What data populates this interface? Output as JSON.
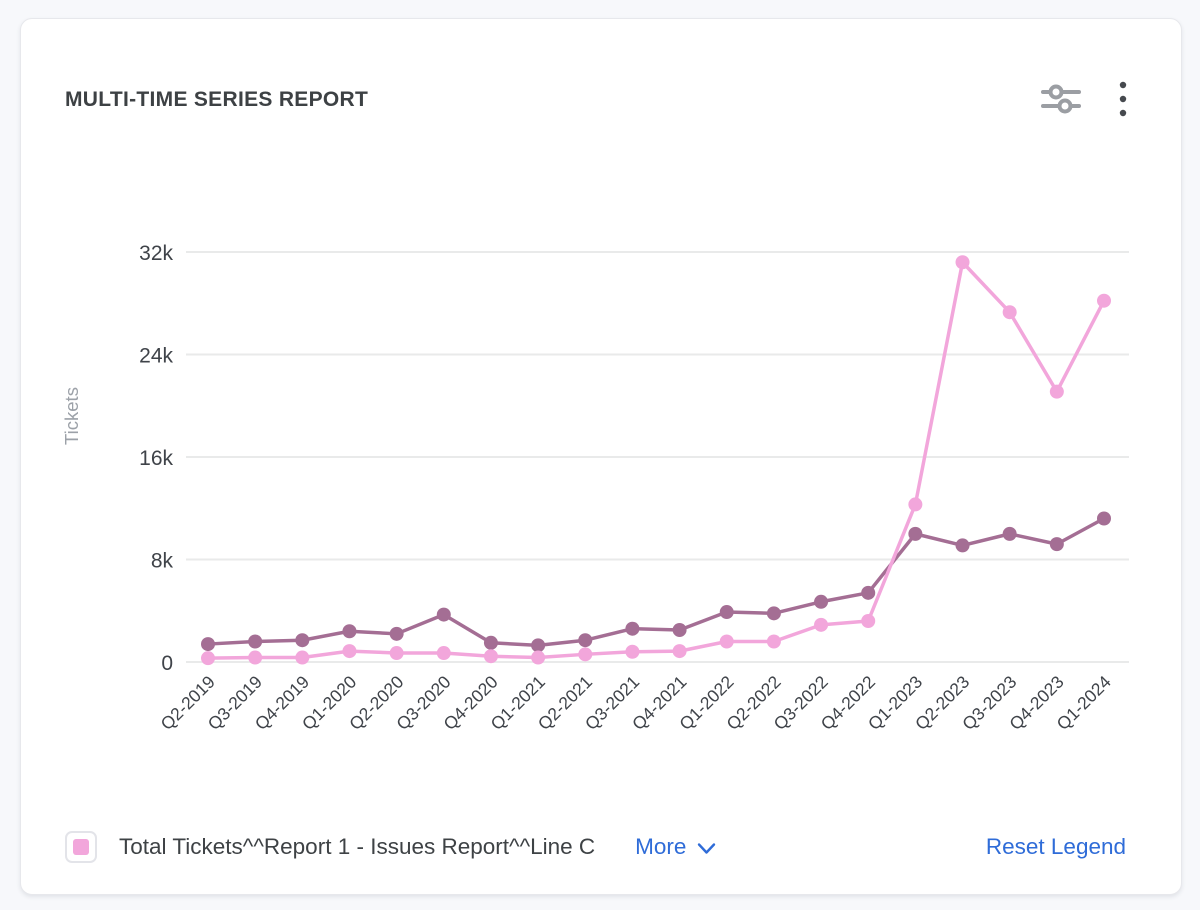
{
  "header": {
    "title": "MULTI-TIME SERIES REPORT"
  },
  "chart_data": {
    "type": "line",
    "title": "MULTI-TIME SERIES REPORT",
    "xlabel": "",
    "ylabel": "Tickets",
    "ylim": [
      0,
      32000
    ],
    "grid": true,
    "legend_position": "bottom",
    "categories": [
      "Q2-2019",
      "Q3-2019",
      "Q4-2019",
      "Q1-2020",
      "Q2-2020",
      "Q3-2020",
      "Q4-2020",
      "Q1-2021",
      "Q2-2021",
      "Q3-2021",
      "Q4-2021",
      "Q1-2022",
      "Q2-2022",
      "Q3-2022",
      "Q4-2022",
      "Q1-2023",
      "Q2-2023",
      "Q3-2023",
      "Q4-2023",
      "Q1-2024"
    ],
    "y_ticks": [
      {
        "label": "0",
        "value": 0
      },
      {
        "label": "8k",
        "value": 8000
      },
      {
        "label": "16k",
        "value": 16000
      },
      {
        "label": "24k",
        "value": 24000
      },
      {
        "label": "32k",
        "value": 32000
      }
    ],
    "series": [
      {
        "name": "Total Tickets^^Report 1 - Issues Report^^Line C",
        "color": "#f2a6db",
        "values": [
          300,
          350,
          350,
          850,
          700,
          700,
          450,
          350,
          600,
          800,
          850,
          1600,
          1600,
          2900,
          3200,
          12300,
          31200,
          27300,
          21100,
          28200
        ]
      },
      {
        "name": "",
        "color": "#a46e94",
        "values": [
          1400,
          1600,
          1700,
          2400,
          2200,
          3700,
          1500,
          1300,
          1700,
          2600,
          2500,
          3900,
          3800,
          4700,
          5400,
          10000,
          9100,
          10000,
          9200,
          11200
        ]
      }
    ]
  },
  "legend": {
    "item_label": "Total Tickets^^Report 1 - Issues Report^^Line C",
    "swatch_color": "#f2a6db",
    "more_label": "More",
    "reset_label": "Reset Legend"
  },
  "style": {
    "grid_color": "#e9eaea",
    "tick_color": "#3f4349",
    "axis_title_color": "#9ca1a8",
    "link_color": "#2f6cd8"
  }
}
